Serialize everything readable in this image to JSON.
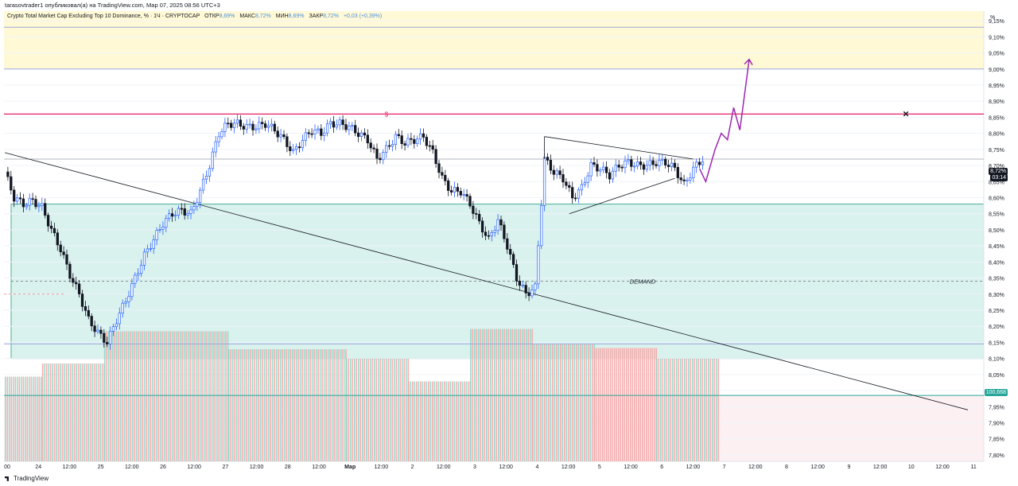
{
  "publisher_line": "tarasovtrader1 опубликовал(а) на TradingView.com, Мар 07, 2025 08:56 UTC+3",
  "legend": {
    "symbol": "Crypto Total Market Cap Excluding Top 10 Dominance, % · 1Ч · CRYPTOCAP",
    "open_label": "ОТКР",
    "open_value": "8,69%",
    "high_label": "МАКС",
    "high_value": "8,72%",
    "low_label": "МИН",
    "low_value": "8,69%",
    "close_label": "ЗАКР",
    "close_value": "8,72%",
    "change": "+0,03 (+0,39%)"
  },
  "price_axis_unit": "%",
  "current_price_tag": "8,72%",
  "countdown_tag": "03:14",
  "volume_profile_tag": "100,668",
  "footer_brand": "TradingView",
  "colors": {
    "bull": "#2962ff",
    "bear": "#131722",
    "demand_zone": "#d9f2ee",
    "demand_border": "#4caf99",
    "supply_zone": "#fff9d6",
    "resistance_line": "#e91e63",
    "projection": "#9c27b0",
    "volume_up": "#8fd3c4",
    "volume_down": "#f4a3a3"
  },
  "chart_data": {
    "type": "candlestick",
    "title": "Crypto Total Market Cap Excluding Top 10 Dominance, %",
    "timeframe": "1H",
    "y_unit": "%",
    "ylim": [
      7.78,
      9.18
    ],
    "y_ticks": [
      "9,15%",
      "9,10%",
      "9,05%",
      "9,00%",
      "8,95%",
      "8,90%",
      "8,85%",
      "8,80%",
      "8,75%",
      "8,70%",
      "8,65%",
      "8,60%",
      "8,55%",
      "8,50%",
      "8,45%",
      "8,40%",
      "8,35%",
      "8,30%",
      "8,25%",
      "8,20%",
      "8,15%",
      "8,10%",
      "8,05%",
      "8,00%",
      "7,95%",
      "7,90%",
      "7,85%",
      "7,80%"
    ],
    "x_ticks": [
      "00",
      "24",
      "12:00",
      "25",
      "12:00",
      "26",
      "12:00",
      "27",
      "12:00",
      "28",
      "12:00",
      "Мар",
      "12:00",
      "2",
      "12:00",
      "3",
      "12:00",
      "4",
      "12:00",
      "5",
      "12:00",
      "6",
      "12:00",
      "7",
      "12:00",
      "8",
      "12:00",
      "9",
      "12:00",
      "10",
      "12:00",
      "11"
    ],
    "close_path_hourly": [
      [
        0,
        8.68
      ],
      [
        3,
        8.6
      ],
      [
        6,
        8.58
      ],
      [
        9,
        8.59
      ],
      [
        12,
        8.57
      ],
      [
        15,
        8.5
      ],
      [
        18,
        8.44
      ],
      [
        21,
        8.36
      ],
      [
        24,
        8.3
      ],
      [
        27,
        8.22
      ],
      [
        30,
        8.18
      ],
      [
        33,
        8.15
      ],
      [
        36,
        8.22
      ],
      [
        39,
        8.28
      ],
      [
        42,
        8.35
      ],
      [
        45,
        8.42
      ],
      [
        48,
        8.47
      ],
      [
        51,
        8.52
      ],
      [
        54,
        8.55
      ],
      [
        57,
        8.56
      ],
      [
        60,
        8.55
      ],
      [
        63,
        8.62
      ],
      [
        66,
        8.7
      ],
      [
        69,
        8.8
      ],
      [
        72,
        8.83
      ],
      [
        75,
        8.83
      ],
      [
        78,
        8.82
      ],
      [
        81,
        8.82
      ],
      [
        84,
        8.83
      ],
      [
        87,
        8.81
      ],
      [
        90,
        8.78
      ],
      [
        93,
        8.74
      ],
      [
        96,
        8.78
      ],
      [
        99,
        8.81
      ],
      [
        102,
        8.8
      ],
      [
        105,
        8.83
      ],
      [
        108,
        8.83
      ],
      [
        111,
        8.82
      ],
      [
        114,
        8.8
      ],
      [
        117,
        8.78
      ],
      [
        120,
        8.72
      ],
      [
        123,
        8.75
      ],
      [
        126,
        8.79
      ],
      [
        129,
        8.77
      ],
      [
        132,
        8.78
      ],
      [
        135,
        8.79
      ],
      [
        138,
        8.74
      ],
      [
        141,
        8.66
      ],
      [
        144,
        8.62
      ],
      [
        147,
        8.62
      ],
      [
        150,
        8.58
      ],
      [
        153,
        8.52
      ],
      [
        156,
        8.47
      ],
      [
        159,
        8.53
      ],
      [
        162,
        8.45
      ],
      [
        165,
        8.35
      ],
      [
        168,
        8.3
      ],
      [
        171,
        8.32
      ],
      [
        174,
        8.72
      ],
      [
        177,
        8.68
      ],
      [
        180,
        8.66
      ],
      [
        183,
        8.6
      ],
      [
        186,
        8.63
      ],
      [
        189,
        8.7
      ],
      [
        192,
        8.69
      ],
      [
        195,
        8.67
      ],
      [
        198,
        8.7
      ],
      [
        201,
        8.71
      ],
      [
        204,
        8.7
      ],
      [
        207,
        8.7
      ],
      [
        210,
        8.71
      ],
      [
        213,
        8.71
      ],
      [
        216,
        8.69
      ],
      [
        219,
        8.64
      ],
      [
        222,
        8.69
      ],
      [
        225,
        8.72
      ]
    ],
    "horizontal_levels": [
      {
        "name": "supply_zone",
        "from": 9.0,
        "to": 9.18
      },
      {
        "name": "level_9_13",
        "value": 9.13
      },
      {
        "name": "resistance",
        "value": 8.86
      },
      {
        "name": "current",
        "value": 8.72
      },
      {
        "name": "demand_top",
        "value": 8.58
      },
      {
        "name": "demand_mid",
        "value": 8.34
      },
      {
        "name": "level_8_14",
        "value": 8.145
      },
      {
        "name": "demand_bottom",
        "value": 8.1
      },
      {
        "name": "level_7_98",
        "value": 7.985
      }
    ],
    "annotations": [
      {
        "type": "text",
        "text": "DEMAND",
        "value": 8.34
      },
      {
        "type": "marker",
        "text": "$",
        "value": 8.86
      },
      {
        "type": "marker",
        "text": "×",
        "value": 8.86
      }
    ],
    "projection_path": [
      [
        224,
        8.69
      ],
      [
        226,
        8.65
      ],
      [
        229,
        8.75
      ],
      [
        231,
        8.8
      ],
      [
        233,
        8.78
      ],
      [
        235,
        8.88
      ],
      [
        237,
        8.81
      ],
      [
        240,
        9.03
      ]
    ],
    "trendline": {
      "from": [
        0,
        8.74
      ],
      "to": [
        290,
        7.94
      ]
    },
    "triangle": {
      "upper": [
        [
          174,
          8.79
        ],
        [
          222,
          8.72
        ]
      ],
      "lower": [
        [
          182,
          8.55
        ],
        [
          216,
          8.66
        ]
      ]
    },
    "volume_profile_segments": [
      {
        "from_hour": 0,
        "to_hour": 12,
        "height": 0.35,
        "color": "mixed"
      },
      {
        "from_hour": 12,
        "to_hour": 32,
        "height": 0.46,
        "color": "mixed"
      },
      {
        "from_hour": 32,
        "to_hour": 72,
        "height": 0.73,
        "color": "mixed"
      },
      {
        "from_hour": 72,
        "to_hour": 110,
        "height": 0.58,
        "color": "mixed"
      },
      {
        "from_hour": 110,
        "to_hour": 130,
        "height": 0.5,
        "color": "mixed"
      },
      {
        "from_hour": 130,
        "to_hour": 150,
        "height": 0.31,
        "color": "mixed"
      },
      {
        "from_hour": 150,
        "to_hour": 170,
        "height": 0.75,
        "color": "mixed"
      },
      {
        "from_hour": 170,
        "to_hour": 190,
        "height": 0.62,
        "color": "mixed"
      },
      {
        "from_hour": 190,
        "to_hour": 210,
        "height": 0.59,
        "color": "mixed"
      },
      {
        "from_hour": 210,
        "to_hour": 230,
        "height": 0.5,
        "color": "mixed"
      }
    ]
  }
}
